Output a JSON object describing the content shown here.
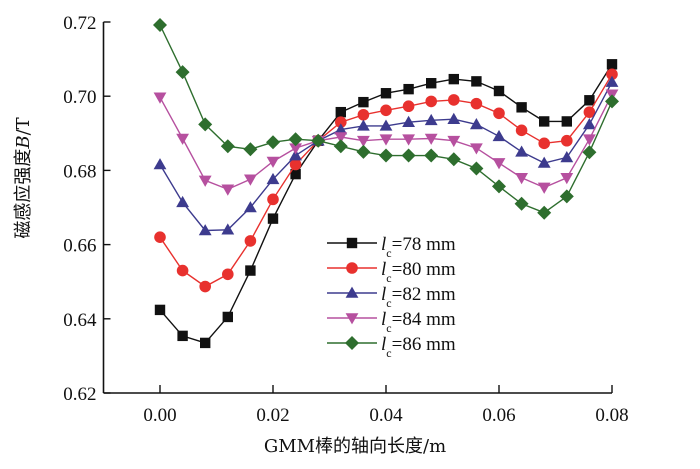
{
  "chart_data": {
    "type": "line",
    "title": "",
    "xlabel": "GMM棒的轴向长度/m",
    "ylabel_prefix": "磁感应强度",
    "ylabel_var": "B",
    "ylabel_unit": "/T",
    "ylabel": "磁感应强度B/T",
    "xlim": [
      -0.01,
      0.08
    ],
    "ylim": [
      0.62,
      0.72
    ],
    "xticks": [
      0.0,
      0.02,
      0.04,
      0.06,
      0.08
    ],
    "xtick_labels": [
      "0.00",
      "0.02",
      "0.04",
      "0.06",
      "0.08"
    ],
    "yticks": [
      0.62,
      0.64,
      0.66,
      0.68,
      0.7,
      0.72
    ],
    "ytick_labels": [
      "0.62",
      "0.64",
      "0.66",
      "0.68",
      "0.70",
      "0.72"
    ],
    "grid": false,
    "legend_position": "lower-right",
    "x": [
      0.0,
      0.004,
      0.008,
      0.012,
      0.016,
      0.02,
      0.024,
      0.028,
      0.032,
      0.036,
      0.04,
      0.044,
      0.048,
      0.052,
      0.056,
      0.06,
      0.064,
      0.068,
      0.072,
      0.076,
      0.08
    ],
    "series": [
      {
        "name": "lc=78 mm",
        "label_var": "l",
        "label_sub": "c",
        "label_rest": "=78 mm",
        "color": "#111111",
        "marker": "square",
        "values": [
          0.6424,
          0.6354,
          0.6335,
          0.6405,
          0.653,
          0.667,
          0.679,
          0.688,
          0.6957,
          0.6984,
          0.7008,
          0.7019,
          0.7035,
          0.7046,
          0.704,
          0.7014,
          0.697,
          0.6932,
          0.6932,
          0.6989,
          0.7086
        ]
      },
      {
        "name": "lc=80 mm",
        "label_var": "l",
        "label_sub": "c",
        "label_rest": "=80 mm",
        "color": "#e8312e",
        "marker": "circle",
        "values": [
          0.662,
          0.653,
          0.6487,
          0.652,
          0.661,
          0.6722,
          0.6816,
          0.688,
          0.693,
          0.695,
          0.6962,
          0.6973,
          0.6986,
          0.699,
          0.698,
          0.6954,
          0.6908,
          0.6873,
          0.688,
          0.6957,
          0.7059
        ]
      },
      {
        "name": "lc=82 mm",
        "label_var": "l",
        "label_sub": "c",
        "label_rest": "=82 mm",
        "color": "#3d3b8e",
        "marker": "triangle-up",
        "values": [
          0.6816,
          0.6714,
          0.6638,
          0.664,
          0.67,
          0.6776,
          0.684,
          0.688,
          0.691,
          0.692,
          0.692,
          0.693,
          0.6935,
          0.6938,
          0.6924,
          0.6892,
          0.685,
          0.682,
          0.6835,
          0.6924,
          0.7038
        ]
      },
      {
        "name": "lc=84 mm",
        "label_var": "l",
        "label_sub": "c",
        "label_rest": "=84 mm",
        "color": "#b6509f",
        "marker": "triangle-down",
        "values": [
          0.6997,
          0.6886,
          0.6773,
          0.6749,
          0.6776,
          0.6824,
          0.686,
          0.688,
          0.689,
          0.688,
          0.6884,
          0.6884,
          0.6886,
          0.688,
          0.686,
          0.682,
          0.678,
          0.6754,
          0.678,
          0.6884,
          0.7005
        ]
      },
      {
        "name": "lc=86 mm",
        "label_var": "l",
        "label_sub": "c",
        "label_rest": "=86 mm",
        "color": "#2e6e2e",
        "marker": "diamond",
        "values": [
          0.7192,
          0.7065,
          0.6924,
          0.6865,
          0.6857,
          0.6876,
          0.6884,
          0.688,
          0.6865,
          0.685,
          0.684,
          0.684,
          0.684,
          0.683,
          0.6805,
          0.6757,
          0.671,
          0.6686,
          0.673,
          0.6849,
          0.6986
        ]
      }
    ]
  }
}
